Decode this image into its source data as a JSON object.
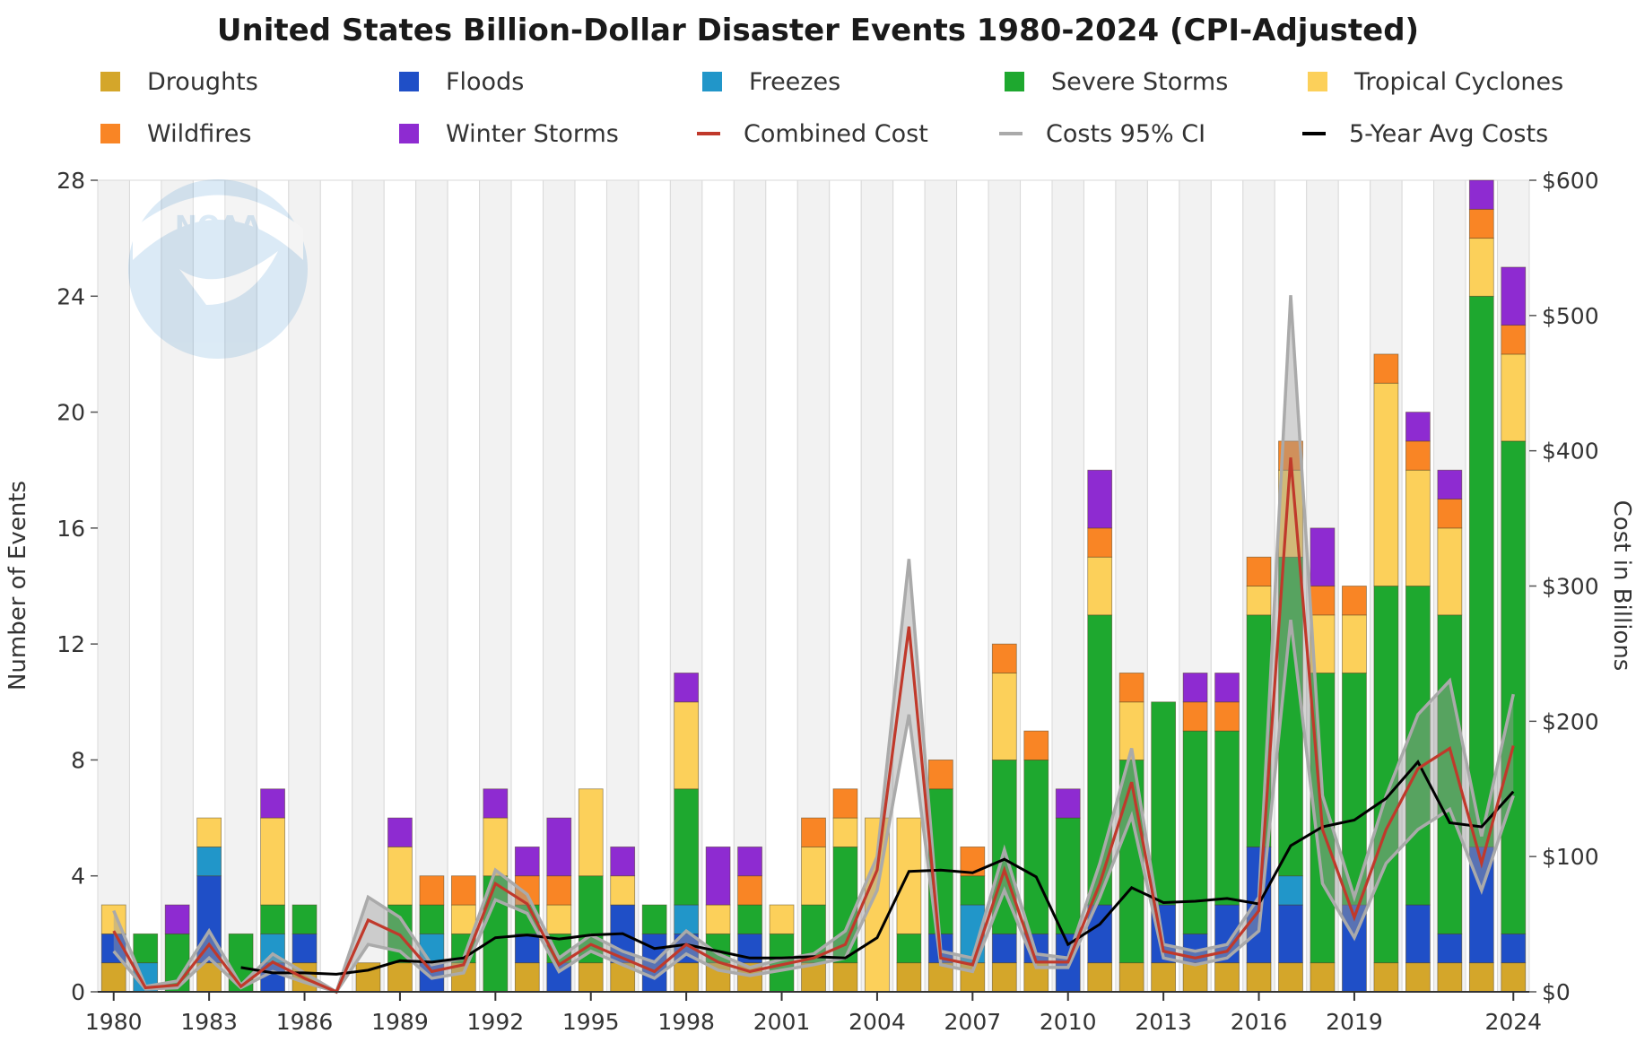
{
  "chart_data": {
    "type": "bar",
    "title": "United States Billion-Dollar Disaster Events 1980-2024 (CPI-Adjusted)",
    "ylabel": "Number of Events",
    "y2label": "Cost in Billions",
    "ylim": [
      0,
      28
    ],
    "y2lim": [
      0,
      600
    ],
    "yticks": [
      "0",
      "4",
      "8",
      "12",
      "16",
      "20",
      "24",
      "28"
    ],
    "y2ticks": [
      "$0",
      "$100",
      "$200",
      "$300",
      "$400",
      "$500",
      "$600"
    ],
    "xticks": [
      "1980",
      "1983",
      "1986",
      "1989",
      "1992",
      "1995",
      "1998",
      "2001",
      "2004",
      "2007",
      "2010",
      "2013",
      "2016",
      "2019",
      "2024"
    ],
    "stacked": true,
    "grid": "alternating vertical bands",
    "legend_position": "top",
    "categories": [
      1980,
      1981,
      1982,
      1983,
      1984,
      1985,
      1986,
      1987,
      1988,
      1989,
      1990,
      1991,
      1992,
      1993,
      1994,
      1995,
      1996,
      1997,
      1998,
      1999,
      2000,
      2001,
      2002,
      2003,
      2004,
      2005,
      2006,
      2007,
      2008,
      2009,
      2010,
      2011,
      2012,
      2013,
      2014,
      2015,
      2016,
      2017,
      2018,
      2019,
      2020,
      2021,
      2022,
      2023,
      2024
    ],
    "series": [
      {
        "name": "Droughts",
        "color": "#D4A62A",
        "values": [
          1,
          0,
          0,
          1,
          0,
          0,
          1,
          0,
          1,
          1,
          0,
          1,
          0,
          1,
          0,
          1,
          1,
          0,
          1,
          1,
          1,
          0,
          1,
          1,
          0,
          1,
          1,
          1,
          1,
          1,
          0,
          1,
          1,
          1,
          1,
          1,
          1,
          1,
          1,
          0,
          1,
          1,
          1,
          1,
          1
        ]
      },
      {
        "name": "Floods",
        "color": "#1F4FC7",
        "values": [
          1,
          0,
          0,
          3,
          0,
          1,
          1,
          0,
          0,
          0,
          1,
          0,
          0,
          1,
          1,
          0,
          2,
          2,
          1,
          0,
          1,
          0,
          0,
          0,
          0,
          0,
          1,
          0,
          1,
          1,
          2,
          2,
          0,
          2,
          1,
          2,
          4,
          2,
          0,
          3,
          0,
          2,
          1,
          4,
          1
        ]
      },
      {
        "name": "Freezes",
        "color": "#2196C9",
        "values": [
          0,
          1,
          0,
          1,
          0,
          1,
          0,
          0,
          0,
          0,
          1,
          0,
          0,
          0,
          0,
          0,
          0,
          0,
          1,
          0,
          0,
          0,
          0,
          0,
          0,
          0,
          0,
          2,
          0,
          0,
          0,
          0,
          0,
          0,
          0,
          0,
          0,
          1,
          0,
          0,
          0,
          0,
          0,
          0,
          0
        ]
      },
      {
        "name": "Severe Storms",
        "color": "#1EA82F",
        "values": [
          0,
          1,
          2,
          0,
          2,
          1,
          1,
          0,
          0,
          2,
          1,
          1,
          4,
          1,
          1,
          3,
          0,
          1,
          4,
          1,
          1,
          2,
          2,
          4,
          0,
          1,
          5,
          1,
          6,
          6,
          4,
          10,
          7,
          7,
          7,
          6,
          8,
          11,
          10,
          8,
          13,
          11,
          11,
          19,
          17
        ]
      },
      {
        "name": "Tropical Cyclones",
        "color": "#FCD05A",
        "values": [
          1,
          0,
          0,
          1,
          0,
          3,
          0,
          0,
          0,
          2,
          0,
          1,
          2,
          0,
          1,
          3,
          1,
          0,
          3,
          1,
          0,
          1,
          2,
          1,
          6,
          4,
          0,
          0,
          3,
          0,
          0,
          2,
          2,
          0,
          0,
          0,
          1,
          3,
          2,
          2,
          7,
          4,
          3,
          2,
          3
        ]
      },
      {
        "name": "Wildfires",
        "color": "#F98525",
        "values": [
          0,
          0,
          0,
          0,
          0,
          0,
          0,
          0,
          0,
          0,
          1,
          1,
          0,
          1,
          1,
          0,
          0,
          0,
          0,
          0,
          1,
          0,
          1,
          1,
          0,
          0,
          1,
          1,
          1,
          1,
          0,
          1,
          1,
          0,
          1,
          1,
          1,
          1,
          1,
          1,
          1,
          1,
          1,
          1,
          1
        ]
      },
      {
        "name": "Winter Storms",
        "color": "#8E2BD1",
        "values": [
          0,
          0,
          1,
          0,
          0,
          1,
          0,
          0,
          0,
          1,
          0,
          0,
          1,
          1,
          2,
          0,
          1,
          0,
          1,
          2,
          1,
          0,
          0,
          0,
          0,
          0,
          0,
          0,
          0,
          0,
          1,
          2,
          0,
          0,
          1,
          1,
          0,
          0,
          2,
          0,
          0,
          1,
          1,
          1,
          2
        ]
      }
    ],
    "line_series": [
      {
        "name": "Combined Cost",
        "color": "#C0392B",
        "axis": "right",
        "values": [
          45,
          3,
          5,
          35,
          4,
          22,
          10,
          0,
          53,
          42,
          15,
          20,
          80,
          65,
          20,
          35,
          25,
          15,
          35,
          22,
          15,
          20,
          25,
          35,
          90,
          270,
          25,
          20,
          90,
          22,
          22,
          80,
          155,
          30,
          25,
          30,
          60,
          395,
          120,
          55,
          120,
          165,
          180,
          95,
          182
        ]
      },
      {
        "name": "Costs 95% CI",
        "color": "#AAAAAA",
        "axis": "right",
        "upper": [
          60,
          4,
          8,
          45,
          5,
          28,
          14,
          0,
          70,
          55,
          20,
          25,
          90,
          72,
          25,
          42,
          30,
          22,
          45,
          28,
          18,
          24,
          28,
          45,
          100,
          320,
          30,
          25,
          105,
          28,
          25,
          95,
          180,
          35,
          30,
          35,
          70,
          515,
          145,
          70,
          145,
          205,
          230,
          115,
          220
        ],
        "lower": [
          30,
          2,
          3,
          25,
          3,
          15,
          7,
          0,
          35,
          30,
          10,
          14,
          68,
          58,
          15,
          30,
          20,
          10,
          28,
          16,
          12,
          16,
          20,
          25,
          75,
          205,
          20,
          15,
          75,
          18,
          18,
          70,
          130,
          25,
          20,
          25,
          45,
          275,
          80,
          40,
          95,
          120,
          135,
          75,
          145
        ]
      },
      {
        "name": "5-Year Avg Costs",
        "color": "#000000",
        "axis": "right",
        "values": [
          null,
          null,
          null,
          null,
          18,
          14,
          14,
          13,
          16,
          23,
          22,
          25,
          40,
          42,
          39,
          42,
          43,
          32,
          35,
          30,
          25,
          25,
          26,
          25,
          40,
          89,
          90,
          88,
          98,
          85,
          35,
          50,
          77,
          66,
          67,
          69,
          65,
          108,
          122,
          127,
          143,
          170,
          125,
          122,
          148
        ]
      }
    ]
  },
  "watermark": {
    "text": "NOAA"
  }
}
